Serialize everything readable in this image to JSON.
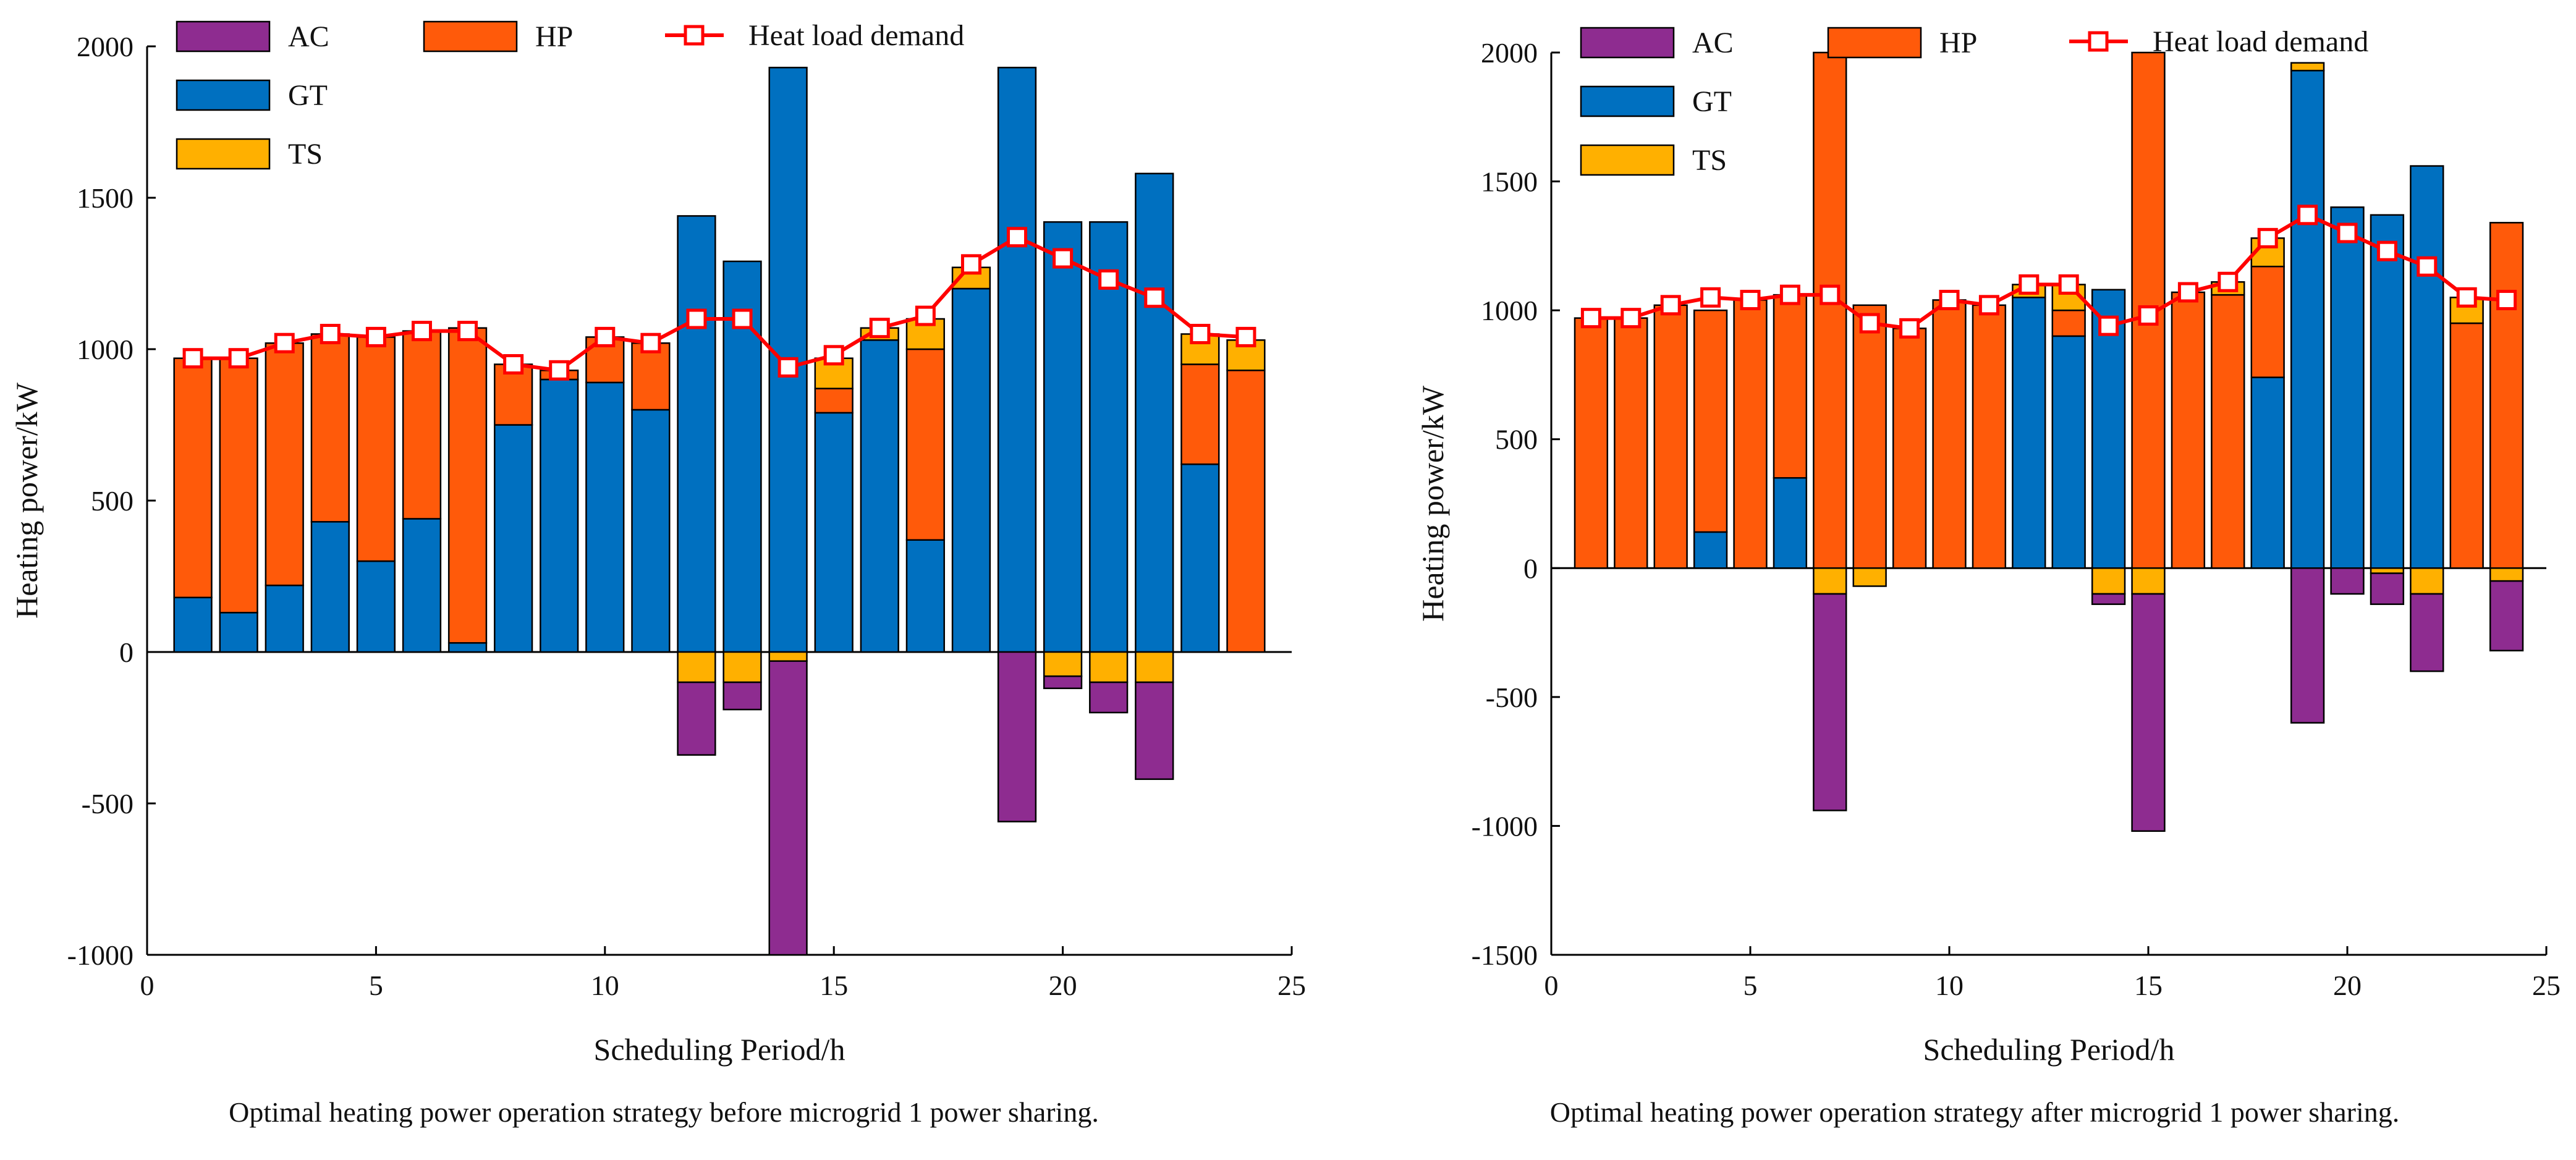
{
  "chart_data": [
    {
      "type": "bar",
      "subtype": "stacked-bar-with-line",
      "title": "Optimal heating power operation strategy before microgrid 1 power sharing.",
      "xlabel": "Scheduling Period/h",
      "ylabel": "Heating power/kW",
      "xlim": [
        0,
        25
      ],
      "ylim": [
        -1000,
        2000
      ],
      "x_ticks": [
        0,
        5,
        10,
        15,
        20,
        25
      ],
      "y_ticks": [
        -1000,
        -500,
        0,
        500,
        1000,
        1500,
        2000
      ],
      "legend": {
        "placement": "top-left",
        "entries": [
          "AC",
          "HP",
          "Heat load demand",
          "GT",
          "TS"
        ]
      },
      "categories": [
        1,
        2,
        3,
        4,
        5,
        6,
        7,
        8,
        9,
        10,
        11,
        12,
        13,
        14,
        15,
        16,
        17,
        18,
        19,
        20,
        21,
        22,
        23,
        24
      ],
      "series": [
        {
          "name": "GT",
          "color": "#0070c0",
          "values": [
            180,
            130,
            220,
            430,
            300,
            440,
            30,
            750,
            900,
            890,
            800,
            1440,
            1290,
            1930,
            790,
            1030,
            370,
            1200,
            1930,
            1420,
            1420,
            1580,
            620,
            0
          ]
        },
        {
          "name": "HP",
          "color": "#ff5a0a",
          "values": [
            790,
            840,
            800,
            620,
            740,
            620,
            1040,
            200,
            30,
            150,
            220,
            0,
            0,
            0,
            80,
            0,
            630,
            0,
            0,
            0,
            0,
            0,
            330,
            930
          ]
        },
        {
          "name": "TS",
          "color": "#ffb000",
          "values": [
            0,
            0,
            0,
            0,
            0,
            0,
            0,
            0,
            0,
            0,
            0,
            -100,
            -100,
            -30,
            100,
            40,
            100,
            70,
            0,
            -80,
            -100,
            -100,
            100,
            100
          ]
        },
        {
          "name": "AC",
          "color": "#8e2c90",
          "values": [
            0,
            0,
            0,
            0,
            0,
            0,
            0,
            0,
            0,
            0,
            0,
            -240,
            -90,
            -970,
            0,
            0,
            0,
            0,
            -560,
            -40,
            -100,
            -320,
            0,
            0
          ]
        },
        {
          "name": "Heat load demand",
          "type": "line",
          "color": "#ff0000",
          "values": [
            970,
            970,
            1020,
            1050,
            1040,
            1060,
            1060,
            950,
            930,
            1040,
            1020,
            1100,
            1100,
            940,
            980,
            1070,
            1110,
            1280,
            1370,
            1300,
            1230,
            1170,
            1050,
            1040
          ]
        }
      ]
    },
    {
      "type": "bar",
      "subtype": "stacked-bar-with-line",
      "title": "Optimal heating power operation strategy after microgrid 1 power sharing.",
      "xlabel": "Scheduling Period/h",
      "ylabel": "Heating power/kW",
      "xlim": [
        0,
        25
      ],
      "ylim": [
        -1500,
        2000
      ],
      "x_ticks": [
        0,
        5,
        10,
        15,
        20,
        25
      ],
      "y_ticks": [
        -1500,
        -1000,
        -500,
        0,
        500,
        1000,
        1500,
        2000
      ],
      "legend": {
        "placement": "top-left",
        "entries": [
          "AC",
          "HP",
          "Heat load demand",
          "GT",
          "TS"
        ]
      },
      "categories": [
        1,
        2,
        3,
        4,
        5,
        6,
        7,
        8,
        9,
        10,
        11,
        12,
        13,
        14,
        15,
        16,
        17,
        18,
        19,
        20,
        21,
        22,
        23,
        24
      ],
      "series": [
        {
          "name": "GT",
          "color": "#0070c0",
          "values": [
            0,
            0,
            0,
            140,
            0,
            350,
            0,
            0,
            0,
            0,
            0,
            1050,
            900,
            1080,
            0,
            0,
            0,
            740,
            1930,
            1400,
            1370,
            1560,
            0,
            0
          ]
        },
        {
          "name": "HP",
          "color": "#ff5a0a",
          "values": [
            970,
            970,
            1020,
            860,
            1040,
            710,
            2000,
            1020,
            930,
            1040,
            1020,
            0,
            100,
            0,
            2000,
            1070,
            1060,
            430,
            0,
            0,
            0,
            0,
            950,
            1340
          ]
        },
        {
          "name": "TS",
          "color": "#ffb000",
          "values": [
            0,
            0,
            0,
            0,
            0,
            0,
            -100,
            -70,
            0,
            0,
            0,
            50,
            100,
            -100,
            -100,
            0,
            50,
            110,
            30,
            0,
            -20,
            -100,
            100,
            -50
          ]
        },
        {
          "name": "AC",
          "color": "#8e2c90",
          "values": [
            0,
            0,
            0,
            0,
            0,
            0,
            -840,
            0,
            0,
            0,
            0,
            0,
            0,
            -40,
            -920,
            0,
            0,
            0,
            -600,
            -100,
            -120,
            -300,
            0,
            -270
          ]
        },
        {
          "name": "Heat load demand",
          "type": "line",
          "color": "#ff0000",
          "values": [
            970,
            970,
            1020,
            1050,
            1040,
            1060,
            1060,
            950,
            930,
            1040,
            1020,
            1100,
            1100,
            940,
            980,
            1070,
            1110,
            1280,
            1370,
            1300,
            1230,
            1170,
            1050,
            1040
          ]
        }
      ]
    }
  ]
}
